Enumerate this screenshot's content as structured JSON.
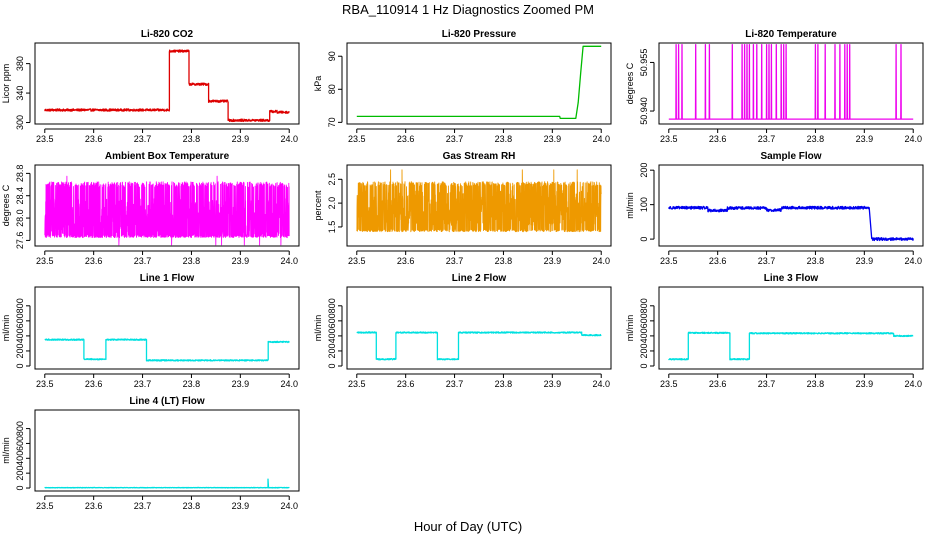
{
  "figure": {
    "title": "RBA_110914  1 Hz Diagnostics Zoomed PM",
    "xlabel": "Hour of Day (UTC)"
  },
  "chart_data": [
    {
      "id": "co2",
      "type": "line",
      "title": "Li-820 CO2",
      "ylabel": "Licor ppm",
      "color": "#dd0000",
      "xlim": [
        23.48,
        24.02
      ],
      "xticks": [
        23.5,
        23.6,
        23.7,
        23.8,
        23.9,
        24.0
      ],
      "xtick_labels": [
        "23.5",
        "23.6",
        "23.7",
        "23.8",
        "23.9",
        "24.0"
      ],
      "ylim": [
        298,
        408
      ],
      "yticks": [
        300,
        340,
        380
      ],
      "ytick_labels": [
        "300",
        "340",
        "380"
      ],
      "segments": [
        [
          23.5,
          23.755,
          317
        ],
        [
          23.755,
          23.795,
          397
        ],
        [
          23.795,
          23.835,
          352
        ],
        [
          23.835,
          23.875,
          329
        ],
        [
          23.875,
          23.96,
          303
        ],
        [
          23.96,
          23.975,
          315
        ],
        [
          23.975,
          24.0,
          314
        ]
      ],
      "noise": 1.5
    },
    {
      "id": "pressure",
      "type": "line",
      "title": "Li-820 Pressure",
      "ylabel": "kPa",
      "color": "#00bb00",
      "xlim": [
        23.48,
        24.02
      ],
      "xticks": [
        23.5,
        23.6,
        23.7,
        23.8,
        23.9,
        24.0
      ],
      "xtick_labels": [
        "23.5",
        "23.6",
        "23.7",
        "23.8",
        "23.9",
        "24.0"
      ],
      "ylim": [
        69.5,
        94
      ],
      "yticks": [
        70,
        80,
        90
      ],
      "ytick_labels": [
        "70",
        "80",
        "90"
      ],
      "points": [
        [
          23.5,
          71.8
        ],
        [
          23.915,
          71.8
        ],
        [
          23.916,
          71.2
        ],
        [
          23.948,
          71.2
        ],
        [
          23.953,
          76
        ],
        [
          23.958,
          85
        ],
        [
          23.963,
          93
        ],
        [
          24.0,
          93
        ]
      ]
    },
    {
      "id": "licor_temp",
      "type": "line",
      "title": "Li-820 Temperature",
      "ylabel": "degrees C",
      "color": "#ee00ee",
      "xlim": [
        23.48,
        24.02
      ],
      "xticks": [
        23.5,
        23.6,
        23.7,
        23.8,
        23.9,
        24.0
      ],
      "xtick_labels": [
        "23.5",
        "23.6",
        "23.7",
        "23.8",
        "23.9",
        "24.0"
      ],
      "ylim": [
        50.936,
        50.961
      ],
      "yticks": [
        50.94,
        50.955
      ],
      "ytick_labels": [
        "50.940",
        "50.955"
      ],
      "baseline": 50.9375,
      "spike_to": 50.9605,
      "spikes": [
        23.515,
        23.52,
        23.527,
        23.555,
        23.575,
        23.583,
        23.63,
        23.65,
        23.655,
        23.66,
        23.665,
        23.673,
        23.68,
        23.69,
        23.7,
        23.705,
        23.71,
        23.72,
        23.73,
        23.735,
        23.74,
        23.8,
        23.805,
        23.82,
        23.84,
        23.85,
        23.86,
        23.865,
        23.87,
        23.965,
        23.975
      ]
    },
    {
      "id": "box_temp",
      "type": "line",
      "title": "Ambient Box Temperature",
      "ylabel": "degrees C",
      "color": "#ff00ff",
      "xlim": [
        23.48,
        24.02
      ],
      "xticks": [
        23.5,
        23.6,
        23.7,
        23.8,
        23.9,
        24.0
      ],
      "xtick_labels": [
        "23.5",
        "23.6",
        "23.7",
        "23.8",
        "23.9",
        "24.0"
      ],
      "ylim": [
        27.5,
        28.95
      ],
      "yticks": [
        27.6,
        28.0,
        28.4,
        28.8
      ],
      "ytick_labels": [
        "27.6",
        "28.0",
        "28.4",
        "28.8"
      ],
      "band": [
        27.65,
        28.65
      ],
      "center": 28.0,
      "extremes": [
        27.52,
        28.75
      ]
    },
    {
      "id": "rh",
      "type": "line",
      "title": "Gas Stream RH",
      "ylabel": "percent",
      "color": "#ee9900",
      "xlim": [
        23.48,
        24.02
      ],
      "xticks": [
        23.5,
        23.6,
        23.7,
        23.8,
        23.9,
        24.0
      ],
      "xtick_labels": [
        "23.5",
        "23.6",
        "23.7",
        "23.8",
        "23.9",
        "24.0"
      ],
      "ylim": [
        1.1,
        2.8
      ],
      "yticks": [
        1.5,
        2.0,
        2.5
      ],
      "ytick_labels": [
        "1.5",
        "2.0",
        "2.5"
      ],
      "band": [
        1.4,
        2.45
      ],
      "center": 1.9,
      "extremes": [
        1.2,
        2.7
      ]
    },
    {
      "id": "sample_flow",
      "type": "line",
      "title": "Sample Flow",
      "ylabel": "ml/min",
      "color": "#0000ee",
      "xlim": [
        23.48,
        24.02
      ],
      "xticks": [
        23.5,
        23.6,
        23.7,
        23.8,
        23.9,
        24.0
      ],
      "xtick_labels": [
        "23.5",
        "23.6",
        "23.7",
        "23.8",
        "23.9",
        "24.0"
      ],
      "ylim": [
        -20,
        215
      ],
      "yticks": [
        0,
        100,
        200
      ],
      "ytick_labels": [
        "0",
        "100",
        "200"
      ],
      "segments": [
        [
          23.5,
          23.58,
          91
        ],
        [
          23.58,
          23.62,
          83
        ],
        [
          23.62,
          23.7,
          90
        ],
        [
          23.7,
          23.73,
          84
        ],
        [
          23.73,
          23.91,
          91
        ],
        [
          23.915,
          24.0,
          0
        ]
      ],
      "noise": 4
    },
    {
      "id": "line1",
      "type": "line",
      "title": "Line 1 Flow",
      "ylabel": "ml/min",
      "color": "#00e0e0",
      "xlim": [
        23.48,
        24.02
      ],
      "xticks": [
        23.5,
        23.6,
        23.7,
        23.8,
        23.9,
        24.0
      ],
      "xtick_labels": [
        "23.5",
        "23.6",
        "23.7",
        "23.8",
        "23.9",
        "24.0"
      ],
      "ylim": [
        -40,
        1050
      ],
      "yticks": [
        0,
        200,
        400,
        600,
        800
      ],
      "ytick_labels": [
        "0",
        "200",
        "400",
        "600",
        "800"
      ],
      "segments": [
        [
          23.5,
          23.58,
          350
        ],
        [
          23.58,
          23.625,
          90
        ],
        [
          23.625,
          23.708,
          350
        ],
        [
          23.708,
          23.957,
          75
        ],
        [
          23.957,
          24.0,
          320
        ]
      ],
      "noise": 8
    },
    {
      "id": "line2",
      "type": "line",
      "title": "Line 2 Flow",
      "ylabel": "ml/min",
      "color": "#00e0e0",
      "xlim": [
        23.48,
        24.02
      ],
      "xticks": [
        23.5,
        23.6,
        23.7,
        23.8,
        23.9,
        24.0
      ],
      "xtick_labels": [
        "23.5",
        "23.6",
        "23.7",
        "23.8",
        "23.9",
        "24.0"
      ],
      "ylim": [
        -40,
        1050
      ],
      "yticks": [
        0,
        200,
        400,
        600,
        800
      ],
      "ytick_labels": [
        "0",
        "200",
        "400",
        "600",
        "800"
      ],
      "segments": [
        [
          23.5,
          23.54,
          445
        ],
        [
          23.54,
          23.58,
          90
        ],
        [
          23.58,
          23.665,
          445
        ],
        [
          23.665,
          23.708,
          90
        ],
        [
          23.708,
          23.96,
          445
        ],
        [
          23.96,
          24.0,
          410
        ]
      ],
      "noise": 8
    },
    {
      "id": "line3",
      "type": "line",
      "title": "Line 3 Flow",
      "ylabel": "ml/min",
      "color": "#00e0e0",
      "xlim": [
        23.48,
        24.02
      ],
      "xticks": [
        23.5,
        23.6,
        23.7,
        23.8,
        23.9,
        24.0
      ],
      "xtick_labels": [
        "23.5",
        "23.6",
        "23.7",
        "23.8",
        "23.9",
        "24.0"
      ],
      "ylim": [
        -40,
        1050
      ],
      "yticks": [
        0,
        200,
        400,
        600,
        800
      ],
      "ytick_labels": [
        "0",
        "200",
        "400",
        "600",
        "800"
      ],
      "segments": [
        [
          23.5,
          23.54,
          90
        ],
        [
          23.54,
          23.625,
          440
        ],
        [
          23.625,
          23.665,
          90
        ],
        [
          23.665,
          23.96,
          435
        ],
        [
          23.96,
          24.0,
          400
        ]
      ],
      "noise": 8
    },
    {
      "id": "line4",
      "type": "line",
      "title": "Line 4 (LT) Flow",
      "ylabel": "ml/min",
      "color": "#00e0e0",
      "xlim": [
        23.48,
        24.02
      ],
      "xticks": [
        23.5,
        23.6,
        23.7,
        23.8,
        23.9,
        24.0
      ],
      "xtick_labels": [
        "23.5",
        "23.6",
        "23.7",
        "23.8",
        "23.9",
        "24.0"
      ],
      "ylim": [
        -40,
        1050
      ],
      "yticks": [
        0,
        200,
        400,
        600,
        800
      ],
      "ytick_labels": [
        "0",
        "200",
        "400",
        "600",
        "800"
      ],
      "segments": [
        [
          23.5,
          24.0,
          5
        ]
      ],
      "noise": 3,
      "spike": [
        23.957,
        120
      ]
    }
  ]
}
